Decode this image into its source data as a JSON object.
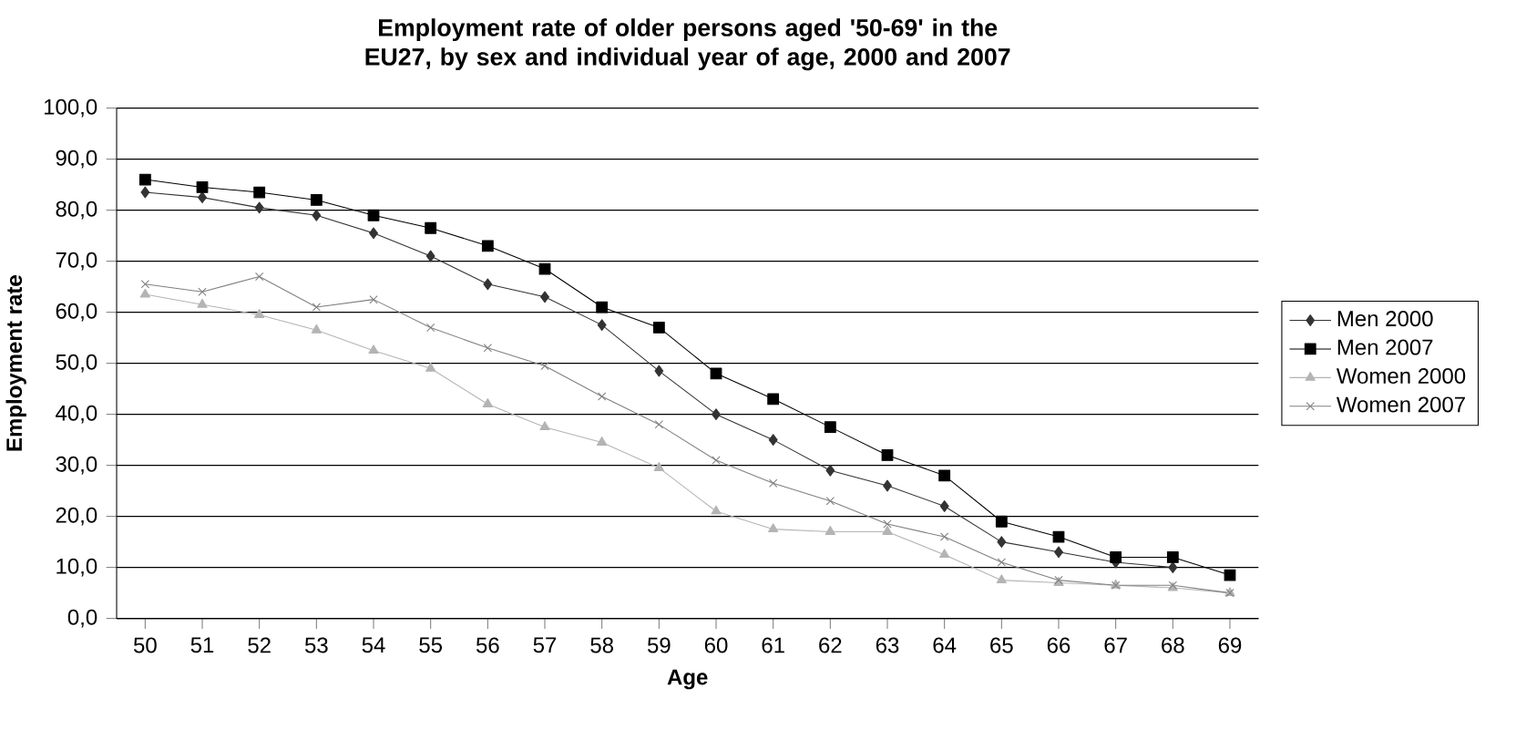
{
  "chart_data": {
    "type": "line",
    "title": "Employment rate of older persons aged '50-69' in the EU27, by sex and individual year of age, 2000 and 2007",
    "xlabel": "Age",
    "ylabel": "Employment rate",
    "categories": [
      "50",
      "51",
      "52",
      "53",
      "54",
      "55",
      "56",
      "57",
      "58",
      "59",
      "60",
      "61",
      "62",
      "63",
      "64",
      "65",
      "66",
      "67",
      "68",
      "69"
    ],
    "series": [
      {
        "name": "Men 2000",
        "color": "#333333",
        "marker": "diamond",
        "values": [
          83.5,
          82.5,
          80.5,
          79,
          75.5,
          71,
          65.5,
          63,
          57.5,
          48.5,
          40,
          35,
          29,
          26,
          22,
          15,
          13,
          11,
          10,
          null
        ]
      },
      {
        "name": "Men 2007",
        "color": "#000000",
        "marker": "square",
        "values": [
          86,
          84.5,
          83.5,
          82,
          79,
          76.5,
          73,
          68.5,
          61,
          57,
          48,
          43,
          37.5,
          32,
          28,
          19,
          16,
          12,
          12,
          8.5
        ]
      },
      {
        "name": "Women 2000",
        "color": "#b4b4b4",
        "marker": "triangle",
        "values": [
          63.5,
          61.5,
          59.5,
          56.5,
          52.5,
          49,
          42,
          37.5,
          34.5,
          29.5,
          21,
          17.5,
          17,
          17,
          12.5,
          7.5,
          7,
          6.5,
          6,
          5
        ]
      },
      {
        "name": "Women 2007",
        "color": "#808080",
        "marker": "cross",
        "values": [
          65.5,
          64,
          67,
          61,
          62.5,
          57,
          53,
          49.5,
          43.5,
          38,
          31,
          26.5,
          23,
          18.5,
          16,
          11,
          7.5,
          6.5,
          6.5,
          5
        ]
      }
    ],
    "ylim": [
      0,
      100
    ],
    "yticks": [
      {
        "value": 0,
        "label": "0,0"
      },
      {
        "value": 10,
        "label": "10,0"
      },
      {
        "value": 20,
        "label": "20,0"
      },
      {
        "value": 30,
        "label": "30,0"
      },
      {
        "value": 40,
        "label": "40,0"
      },
      {
        "value": 50,
        "label": "50,0"
      },
      {
        "value": 60,
        "label": "60,0"
      },
      {
        "value": 70,
        "label": "70,0"
      },
      {
        "value": 80,
        "label": "80,0"
      },
      {
        "value": 90,
        "label": "90,0"
      },
      {
        "value": 100,
        "label": "100,0"
      }
    ],
    "grid": "y",
    "legend": "right",
    "line_style": "solid"
  }
}
